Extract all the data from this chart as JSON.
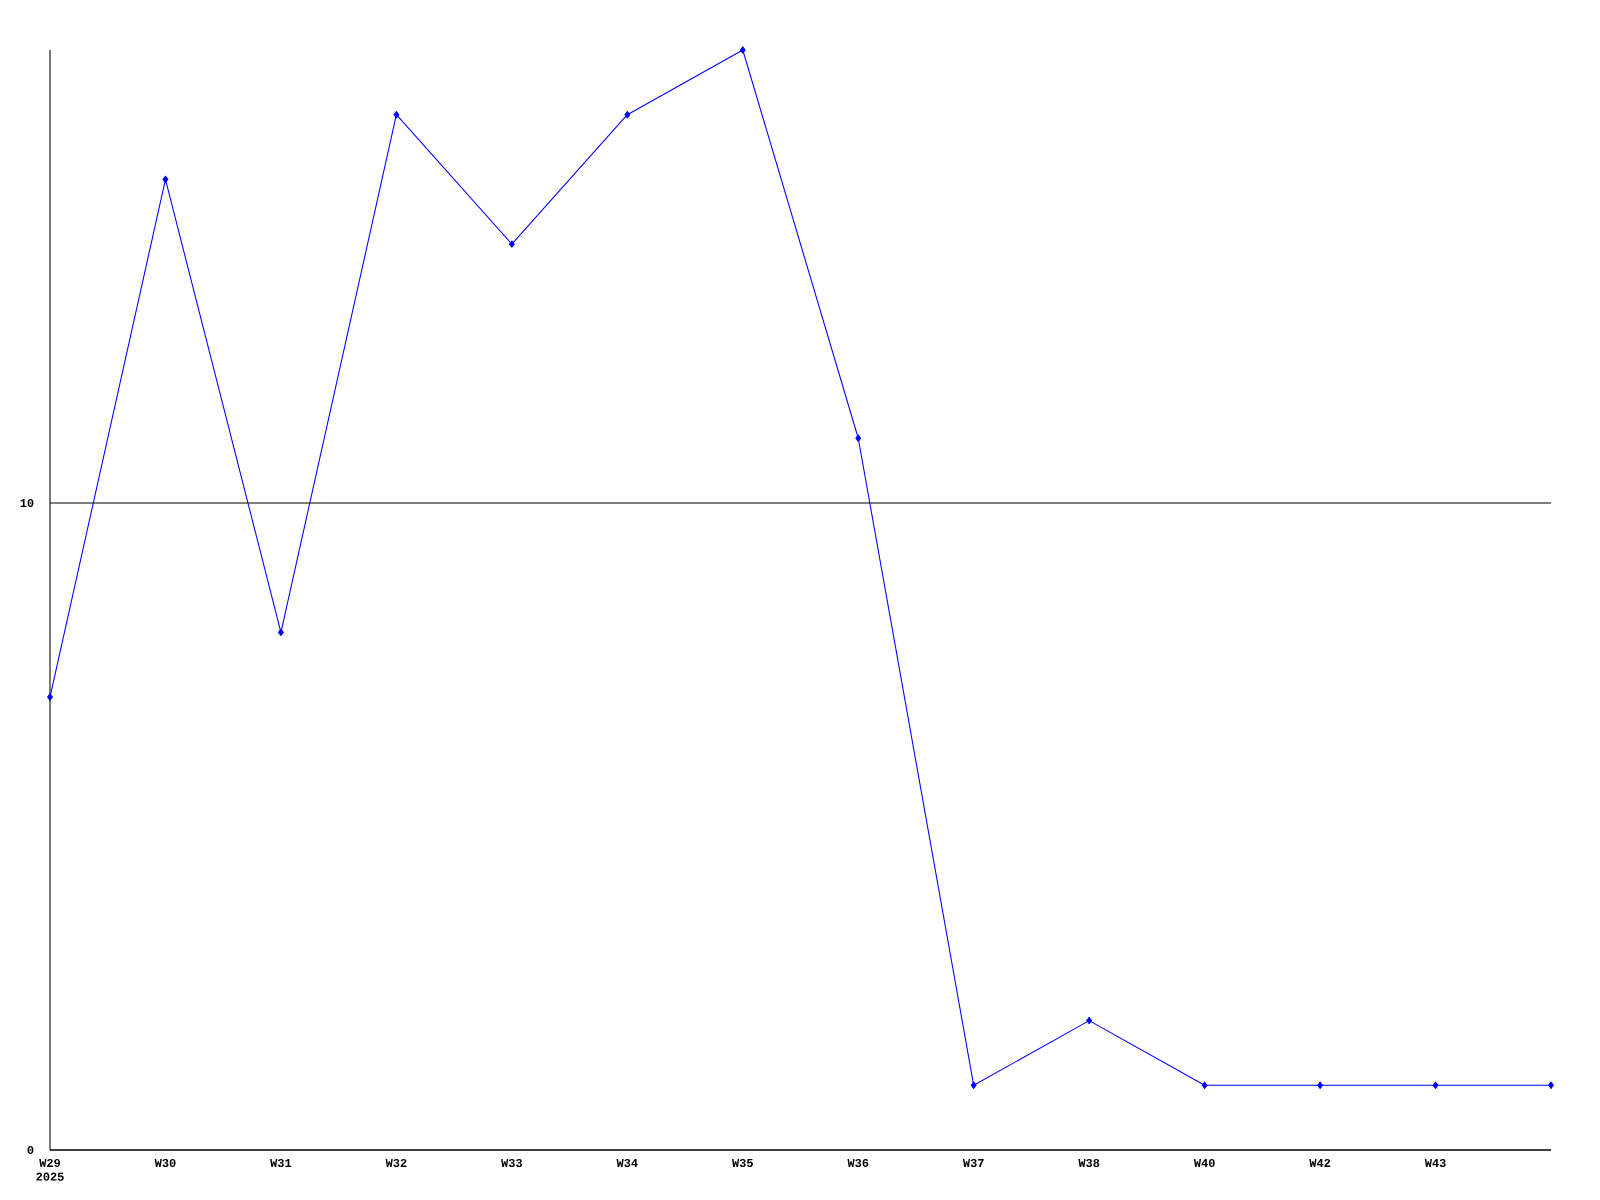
{
  "chart_data": {
    "type": "line",
    "categories": [
      "W29 2025",
      "W30",
      "W31",
      "W32",
      "W33",
      "W34",
      "W35",
      "W36",
      "W37",
      "W38",
      "W40",
      "W42",
      "W43",
      null
    ],
    "values": [
      7,
      15,
      8,
      16,
      14,
      16,
      17,
      11,
      1,
      2,
      1,
      1,
      1,
      1
    ],
    "color": "#0000ff",
    "ylim": [
      0,
      17
    ],
    "yticks": [
      0,
      10
    ],
    "grid": "y",
    "marker": "diamond"
  }
}
